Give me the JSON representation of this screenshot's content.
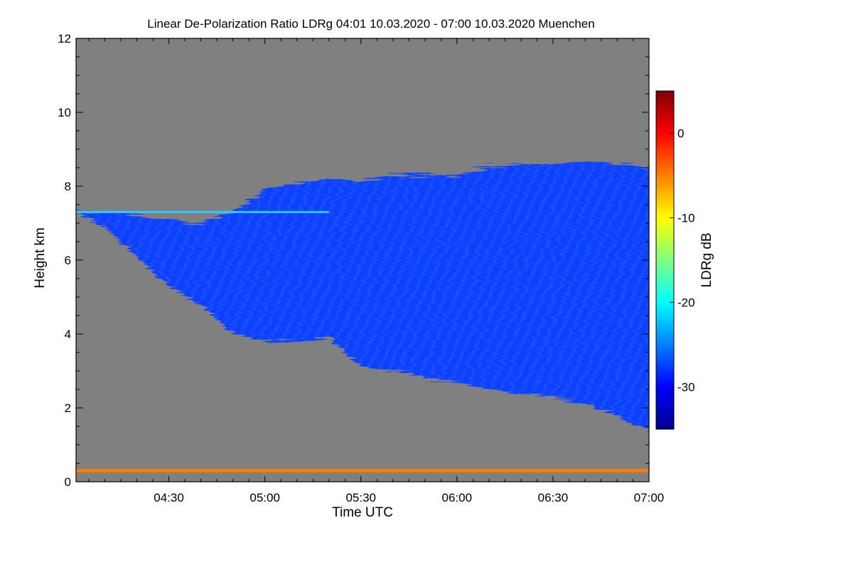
{
  "chart_data": {
    "type": "heatmap",
    "title": "Linear De-Polarization Ratio LDRg   04:01 10.03.2020 - 07:00 10.03.2020 Muenchen",
    "xlabel": "Time UTC",
    "ylabel": "Height km",
    "colorbar_label": "LDRg dB",
    "x_range": [
      "04:01",
      "07:00"
    ],
    "y_range": [
      0,
      12
    ],
    "x_ticks": [
      "04:30",
      "05:00",
      "05:30",
      "06:00",
      "06:30",
      "07:00"
    ],
    "x_tick_minutes": [
      30,
      60,
      90,
      120,
      150,
      180
    ],
    "y_ticks": [
      "0",
      "2",
      "4",
      "6",
      "8",
      "10",
      "12"
    ],
    "y_tick_values": [
      0,
      2,
      4,
      6,
      8,
      10,
      12
    ],
    "colorbar_range": [
      -35,
      5
    ],
    "colorbar_ticks": [
      "0",
      "-10",
      "-20",
      "-30"
    ],
    "colorbar_tick_values": [
      0,
      -10,
      -20,
      -30
    ],
    "no_data_color": "#808080",
    "colormap": [
      "#00008f",
      "#0000ff",
      "#0080ff",
      "#00ffff",
      "#80ff80",
      "#ffff00",
      "#ff8000",
      "#ff0000",
      "#800000"
    ],
    "cloud_layer": {
      "dominant_ldr_db": -29,
      "top_edge_km": {
        "times": [
          "04:01",
          "04:10",
          "04:20",
          "04:30",
          "04:40",
          "04:50",
          "05:00",
          "05:10",
          "05:20",
          "05:30",
          "05:40",
          "05:50",
          "06:00",
          "06:10",
          "06:20",
          "06:30",
          "06:40",
          "06:50",
          "07:00"
        ],
        "heights": [
          7.3,
          7.3,
          7.2,
          7.1,
          7.0,
          7.3,
          7.9,
          8.1,
          8.2,
          8.1,
          8.3,
          8.3,
          8.3,
          8.5,
          8.6,
          8.6,
          8.7,
          8.6,
          8.5
        ]
      },
      "base_edge_km": {
        "times": [
          "04:01",
          "04:10",
          "04:20",
          "04:30",
          "04:40",
          "04:50",
          "05:00",
          "05:10",
          "05:20",
          "05:30",
          "05:40",
          "05:50",
          "06:00",
          "06:10",
          "06:20",
          "06:30",
          "06:40",
          "06:50",
          "07:00"
        ],
        "heights": [
          7.3,
          6.9,
          6.1,
          5.3,
          4.8,
          4.0,
          3.8,
          3.8,
          3.9,
          3.1,
          3.0,
          2.8,
          2.7,
          2.5,
          2.4,
          2.3,
          2.1,
          1.8,
          1.4
        ]
      },
      "thin_layer_km": 7.3,
      "thin_layer_ldr_db": -22
    },
    "near_surface_layer": {
      "height_km": 0.3,
      "ldr_db": -3
    }
  }
}
